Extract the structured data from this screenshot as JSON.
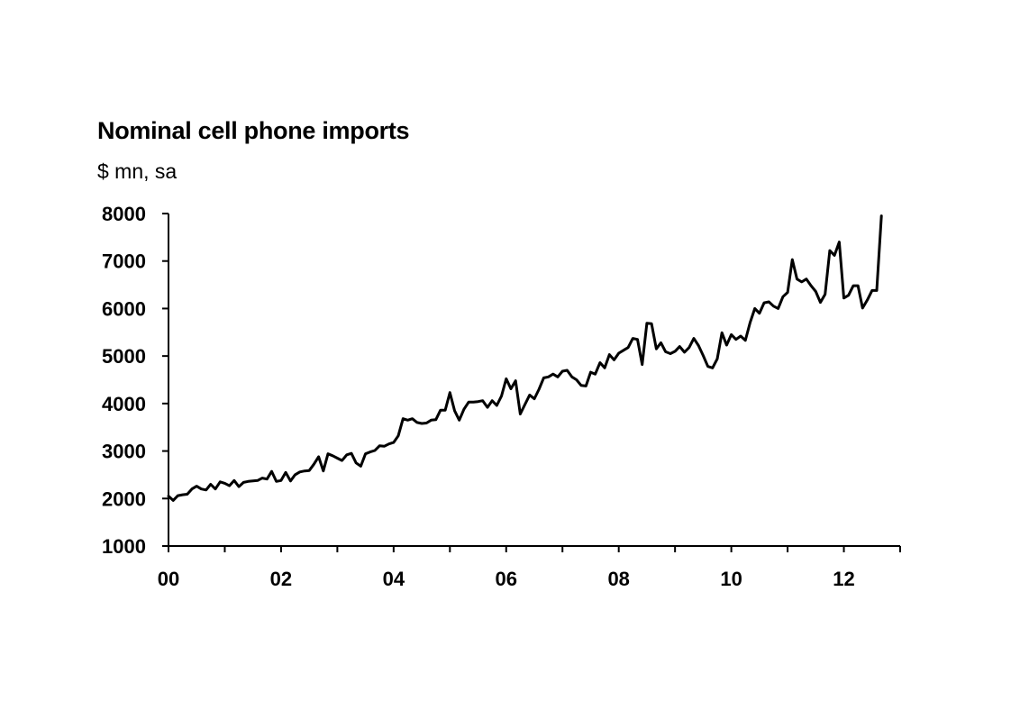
{
  "chart_data": {
    "type": "line",
    "title": "Nominal cell phone imports",
    "subtitle": "$ mn, sa",
    "xlabel": "",
    "ylabel": "",
    "x_tick_labels": [
      "00",
      "02",
      "04",
      "06",
      "08",
      "10",
      "12"
    ],
    "y_tick_labels": [
      "1000",
      "2000",
      "3000",
      "4000",
      "5000",
      "6000",
      "7000",
      "8000"
    ],
    "ylim": [
      1000,
      8000
    ],
    "xlim": [
      2000.0,
      2013.0
    ],
    "grid": false,
    "legend": false,
    "series": [
      {
        "color": "#000000",
        "x": [
          2000.0,
          2000.083,
          2000.167,
          2000.25,
          2000.333,
          2000.417,
          2000.5,
          2000.583,
          2000.667,
          2000.75,
          2000.833,
          2000.917,
          2001.0,
          2001.083,
          2001.167,
          2001.25,
          2001.333,
          2001.417,
          2001.5,
          2001.583,
          2001.667,
          2001.75,
          2001.833,
          2001.917,
          2002.0,
          2002.083,
          2002.167,
          2002.25,
          2002.333,
          2002.417,
          2002.5,
          2002.583,
          2002.667,
          2002.75,
          2002.833,
          2002.917,
          2003.0,
          2003.083,
          2003.167,
          2003.25,
          2003.333,
          2003.417,
          2003.5,
          2003.583,
          2003.667,
          2003.75,
          2003.833,
          2003.917,
          2004.0,
          2004.083,
          2004.167,
          2004.25,
          2004.333,
          2004.417,
          2004.5,
          2004.583,
          2004.667,
          2004.75,
          2004.833,
          2004.917,
          2005.0,
          2005.083,
          2005.167,
          2005.25,
          2005.333,
          2005.417,
          2005.5,
          2005.583,
          2005.667,
          2005.75,
          2005.833,
          2005.917,
          2006.0,
          2006.083,
          2006.167,
          2006.25,
          2006.333,
          2006.417,
          2006.5,
          2006.583,
          2006.667,
          2006.75,
          2006.833,
          2006.917,
          2007.0,
          2007.083,
          2007.167,
          2007.25,
          2007.333,
          2007.417,
          2007.5,
          2007.583,
          2007.667,
          2007.75,
          2007.833,
          2007.917,
          2008.0,
          2008.083,
          2008.167,
          2008.25,
          2008.333,
          2008.417,
          2008.5,
          2008.583,
          2008.667,
          2008.75,
          2008.833,
          2008.917,
          2009.0,
          2009.083,
          2009.167,
          2009.25,
          2009.333,
          2009.417,
          2009.5,
          2009.583,
          2009.667,
          2009.75,
          2009.833,
          2009.917,
          2010.0,
          2010.083,
          2010.167,
          2010.25,
          2010.333,
          2010.417,
          2010.5,
          2010.583,
          2010.667,
          2010.75,
          2010.833,
          2010.917,
          2011.0,
          2011.083,
          2011.167,
          2011.25,
          2011.333,
          2011.417,
          2011.5,
          2011.583,
          2011.667,
          2011.75,
          2011.833,
          2011.917,
          2012.0,
          2012.083,
          2012.167,
          2012.25,
          2012.333,
          2012.417,
          2012.5,
          2012.583,
          2012.667
        ],
        "y": [
          2050,
          1960,
          2060,
          2080,
          2090,
          2200,
          2260,
          2200,
          2180,
          2300,
          2200,
          2350,
          2320,
          2270,
          2380,
          2250,
          2340,
          2360,
          2370,
          2380,
          2430,
          2410,
          2570,
          2360,
          2380,
          2550,
          2370,
          2500,
          2560,
          2580,
          2590,
          2720,
          2880,
          2580,
          2940,
          2900,
          2850,
          2800,
          2920,
          2950,
          2750,
          2680,
          2940,
          2980,
          3010,
          3110,
          3100,
          3150,
          3180,
          3320,
          3680,
          3650,
          3680,
          3600,
          3580,
          3590,
          3650,
          3660,
          3860,
          3860,
          4230,
          3850,
          3650,
          3880,
          4030,
          4030,
          4040,
          4060,
          3920,
          4060,
          3960,
          4160,
          4520,
          4310,
          4480,
          3780,
          3980,
          4180,
          4100,
          4300,
          4540,
          4560,
          4620,
          4560,
          4680,
          4700,
          4560,
          4500,
          4380,
          4370,
          4660,
          4620,
          4860,
          4750,
          5030,
          4920,
          5060,
          5120,
          5180,
          5370,
          5350,
          4820,
          5690,
          5680,
          5150,
          5280,
          5090,
          5050,
          5100,
          5200,
          5080,
          5180,
          5370,
          5220,
          5010,
          4780,
          4750,
          4940,
          5490,
          5230,
          5450,
          5350,
          5420,
          5330,
          5700,
          6000,
          5900,
          6120,
          6140,
          6050,
          6000,
          6250,
          6340,
          7030,
          6620,
          6560,
          6620,
          6480,
          6360,
          6130,
          6300,
          7220,
          7120,
          7400,
          6220,
          6280,
          6480,
          6480,
          6010,
          6180,
          6380,
          6380,
          7950
        ]
      }
    ]
  }
}
